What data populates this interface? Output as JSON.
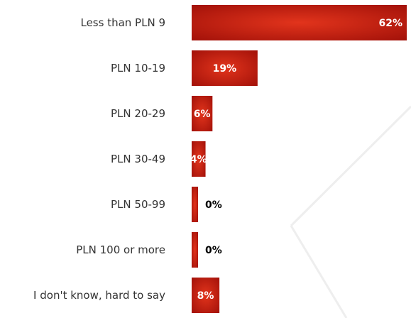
{
  "chart_data": {
    "type": "bar",
    "orientation": "horizontal",
    "categories": [
      "Less than PLN 9",
      "PLN 10-19",
      "PLN 20-29",
      "PLN 30-49",
      "PLN 50-99",
      "PLN 100 or more",
      "I don't know, hard to say"
    ],
    "values": [
      62,
      19,
      6,
      4,
      0,
      0,
      8
    ],
    "value_labels": [
      "62%",
      "19%",
      "6%",
      "4%",
      "0%",
      "0%",
      "8%"
    ],
    "unit": "%",
    "xlim": [
      0,
      62
    ],
    "grid": false,
    "legend": "none",
    "colors": {
      "bar_dark": "#9e0f08",
      "bar_light": "#e2341c",
      "label_inside": "#ffffff",
      "label_outside": "#000000",
      "decor_line": "#eeeeee"
    }
  }
}
